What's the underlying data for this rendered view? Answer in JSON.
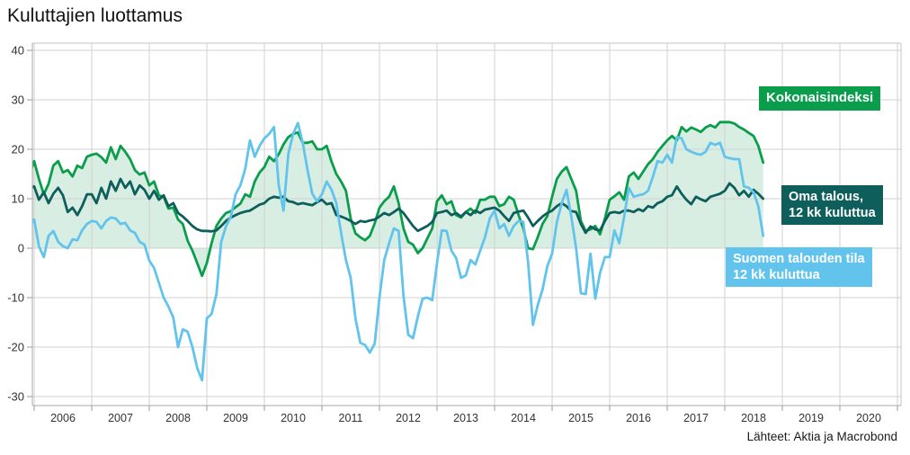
{
  "page": {
    "title": "Kuluttajien luottamus",
    "source": "Lähteet: Aktia ja Macrobond"
  },
  "legend": {
    "kokonaisindeksi": {
      "text": "Kokonaisindeksi",
      "bg": "#0a9e4c"
    },
    "oma_talous": {
      "text": "Oma talous,\n12 kk kuluttua",
      "bg": "#0e5e5c"
    },
    "suomen_talous": {
      "text": "Suomen talouden tila\n12 kk kuluttua",
      "bg": "#62c4ec"
    }
  },
  "chart_data": {
    "type": "line",
    "title": "Kuluttajien luottamus",
    "source": "Lähteet: Aktia ja Macrobond",
    "frequency": "monthly",
    "x_start": "2005-12",
    "x_end": "2018-09",
    "x_ticks": [
      2006,
      2007,
      2008,
      2009,
      2010,
      2011,
      2012,
      2013,
      2014,
      2015,
      2016,
      2017,
      2018,
      2019,
      2020
    ],
    "x_grid_years": [
      2006,
      2007,
      2008,
      2009,
      2010,
      2011,
      2012,
      2013,
      2014,
      2015,
      2016,
      2017,
      2018,
      2019,
      2020,
      2021
    ],
    "y_ticks": [
      40,
      30,
      20,
      10,
      0,
      -10,
      -20,
      -30
    ],
    "ylim": [
      -32,
      41.5
    ],
    "xlim_years": [
      2005.95,
      2021.06
    ],
    "grid": true,
    "legend_position": "right-overlay",
    "colors": {
      "grid": "#d2d2d2",
      "frame": "#a8a8a8",
      "tick": "#9a9a9a",
      "tick_label": "#333333",
      "area_fill": "#d9eee2"
    },
    "series": [
      {
        "name": "Kokonaisindeksi",
        "color": "#0a9e4c",
        "fill_to_zero": true,
        "fill_color": "#d9eee2",
        "values": [
          14.9,
          17.6,
          14.0,
          10.9,
          13.0,
          16.7,
          17.6,
          15.3,
          15.8,
          14.5,
          16.7,
          16.2,
          18.5,
          18.9,
          19.1,
          18.4,
          17.3,
          20.4,
          18.0,
          20.7,
          19.5,
          18.0,
          15.8,
          14.9,
          15.3,
          12.7,
          13.5,
          10.7,
          10.4,
          8.0,
          8.2,
          5.8,
          4.9,
          1.5,
          -0.5,
          -3.0,
          -5.6,
          -3.0,
          1.0,
          4.5,
          6.0,
          7.1,
          7.5,
          8.3,
          9.0,
          10.9,
          10.4,
          13.5,
          15.3,
          16.4,
          18.5,
          17.6,
          19.0,
          21.0,
          22.5,
          23.1,
          23.4,
          21.3,
          21.3,
          21.6,
          20.0,
          20.0,
          20.7,
          17.5,
          15.0,
          13.5,
          11.6,
          6.0,
          3.0,
          2.2,
          1.6,
          2.5,
          5.0,
          8.2,
          9.5,
          10.4,
          12.5,
          9.1,
          4.0,
          1.3,
          0.7,
          -1.0,
          0.0,
          2.0,
          4.0,
          9.5,
          10.7,
          8.9,
          9.5,
          6.7,
          6.2,
          7.3,
          8.0,
          7.1,
          9.8,
          9.8,
          10.4,
          10.4,
          8.5,
          8.9,
          10.4,
          9.8,
          6.7,
          4.0,
          0.0,
          -0.2,
          2.2,
          4.9,
          6.5,
          10.4,
          14.0,
          15.5,
          16.4,
          14.0,
          11.6,
          5.5,
          3.5,
          3.8,
          4.5,
          2.8,
          6.0,
          9.8,
          10.5,
          11.3,
          9.8,
          14.5,
          15.3,
          14.0,
          15.5,
          17.0,
          18.0,
          19.5,
          20.7,
          21.8,
          22.7,
          21.8,
          24.5,
          23.6,
          24.4,
          24.0,
          23.5,
          24.4,
          24.9,
          24.4,
          25.5,
          25.5,
          25.5,
          25.2,
          24.5,
          24.0,
          23.3,
          22.7,
          20.7,
          17.3
        ]
      },
      {
        "name": "Oma talous, 12 kk kuluttua",
        "color": "#0e5e5c",
        "fill_to_zero": false,
        "values": [
          12.0,
          12.5,
          9.8,
          11.3,
          9.1,
          11.0,
          12.2,
          10.7,
          7.3,
          8.2,
          6.7,
          8.5,
          10.9,
          10.9,
          9.1,
          12.2,
          10.0,
          13.5,
          11.6,
          14.0,
          12.2,
          13.5,
          10.9,
          12.7,
          11.8,
          10.0,
          11.6,
          9.8,
          10.7,
          8.5,
          9.1,
          7.1,
          6.4,
          5.5,
          4.5,
          3.8,
          3.5,
          3.5,
          3.4,
          3.6,
          4.5,
          5.5,
          6.2,
          6.7,
          7.1,
          7.4,
          7.6,
          8.2,
          8.8,
          9.1,
          10.0,
          10.4,
          10.2,
          10.4,
          9.5,
          9.3,
          8.9,
          9.1,
          8.9,
          8.7,
          9.3,
          9.8,
          8.9,
          9.1,
          6.7,
          6.4,
          6.0,
          5.5,
          4.9,
          5.5,
          5.3,
          5.6,
          5.8,
          6.4,
          7.1,
          6.7,
          7.3,
          8.0,
          7.1,
          5.8,
          4.5,
          3.5,
          4.0,
          4.5,
          5.3,
          7.1,
          7.3,
          7.6,
          6.7,
          7.1,
          6.4,
          7.3,
          6.7,
          7.6,
          7.1,
          7.8,
          8.0,
          8.2,
          7.6,
          6.5,
          5.5,
          7.1,
          7.4,
          7.6,
          6.2,
          4.5,
          5.5,
          6.4,
          7.1,
          7.6,
          8.5,
          9.1,
          8.5,
          7.5,
          7.3,
          4.9,
          3.1,
          4.4,
          3.8,
          3.6,
          5.5,
          7.1,
          7.3,
          7.1,
          7.6,
          7.6,
          7.3,
          7.9,
          7.5,
          8.5,
          8.2,
          9.1,
          9.5,
          10.4,
          10.7,
          12.5,
          11.0,
          9.8,
          8.9,
          10.4,
          9.9,
          9.5,
          10.4,
          10.7,
          11.0,
          11.6,
          13.1,
          12.2,
          10.7,
          11.6,
          10.4,
          11.8,
          11.0,
          10.0
        ]
      },
      {
        "name": "Suomen talouden tila 12 kk kuluttua",
        "color": "#62c4ec",
        "fill_to_zero": false,
        "values": [
          4.4,
          5.8,
          0.4,
          -1.8,
          2.5,
          3.5,
          1.3,
          0.4,
          0.0,
          1.8,
          1.6,
          3.6,
          4.9,
          5.5,
          5.3,
          4.0,
          5.5,
          6.2,
          6.0,
          4.9,
          5.1,
          3.6,
          3.1,
          1.3,
          0.7,
          -2.5,
          -4.0,
          -7.0,
          -10.0,
          -11.8,
          -14.0,
          -20.0,
          -16.4,
          -16.9,
          -20.0,
          -24.2,
          -26.7,
          -14.2,
          -13.3,
          -9.3,
          1.3,
          4.4,
          6.4,
          10.9,
          12.7,
          16.0,
          21.8,
          18.5,
          20.7,
          22.2,
          23.1,
          24.5,
          12.7,
          7.6,
          19.1,
          23.1,
          25.3,
          21.3,
          15.8,
          11.0,
          9.5,
          10.9,
          13.5,
          11.8,
          9.1,
          3.1,
          -2.4,
          -6.0,
          -14.2,
          -19.1,
          -19.6,
          -21.1,
          -19.3,
          -10.0,
          -2.4,
          1.0,
          4.0,
          3.5,
          -9.6,
          -17.5,
          -18.2,
          -13.8,
          -10.2,
          -10.0,
          -10.5,
          -3.0,
          3.6,
          3.5,
          -0.5,
          -2.0,
          -6.0,
          -5.5,
          -2.4,
          -3.3,
          -0.5,
          2.2,
          6.0,
          7.6,
          4.0,
          4.9,
          2.5,
          4.5,
          5.5,
          5.3,
          -2.9,
          -15.5,
          -11.5,
          -8.4,
          -3.6,
          -1.1,
          5.3,
          9.1,
          11.8,
          6.4,
          0.0,
          -9.1,
          -9.3,
          -1.1,
          -10.2,
          -5.0,
          -1.8,
          -1.8,
          3.6,
          1.0,
          6.2,
          12.2,
          10.4,
          10.7,
          10.9,
          11.6,
          14.4,
          17.6,
          17.3,
          18.9,
          17.3,
          22.5,
          22.2,
          20.0,
          19.5,
          19.1,
          18.9,
          19.5,
          21.3,
          20.9,
          21.3,
          18.5,
          18.2,
          18.0,
          18.0,
          12.5,
          12.2,
          11.3,
          8.5,
          2.5
        ]
      }
    ]
  }
}
